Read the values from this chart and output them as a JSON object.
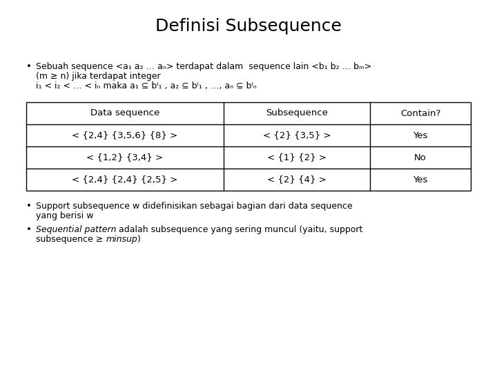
{
  "title": "Definisi Subsequence",
  "background_color": "#ffffff",
  "title_fontsize": 18,
  "bullet1_line1": "Sebuah sequence <a₁ a₂ … aₙ> terdapat dalam  sequence lain <b₁ b₂ … bₘ>",
  "bullet1_line2": "(m ≥ n) jika terdapat integer",
  "bullet1_line3": "i₁ < i₂ < … < iₙ maka a₁ ⊆ bᴵ₁ , a₂ ⊆ bᴵ₁ , …, aₙ ⊆ bᴵₙ",
  "table_headers": [
    "Data sequence",
    "Subsequence",
    "Contain?"
  ],
  "table_rows": [
    [
      "< {2,4} {3,5,6} {8} >",
      "< {2} {3,5} >",
      "Yes"
    ],
    [
      "< {1,2} {3,4} >",
      "< {1} {2} >",
      "No"
    ],
    [
      "< {2,4} {2,4} {2,5} >",
      "< {2} {4} >",
      "Yes"
    ]
  ],
  "bullet2_line1": "Support subsequence w didefinisikan sebagai bagian dari data sequence",
  "bullet2_line2": "yang berisi w",
  "bullet3_italic": "Sequential pattern",
  "bullet3_normal": " adalah subsequence yang sering muncul (yaitu, support",
  "bullet3_line2_pre": "subsequence ≥ ",
  "bullet3_line2_italic": "minsup",
  "bullet3_line2_post": ")",
  "text_color": "#000000",
  "table_border_color": "#000000",
  "body_fontsize": 9,
  "table_fontsize": 9.5
}
